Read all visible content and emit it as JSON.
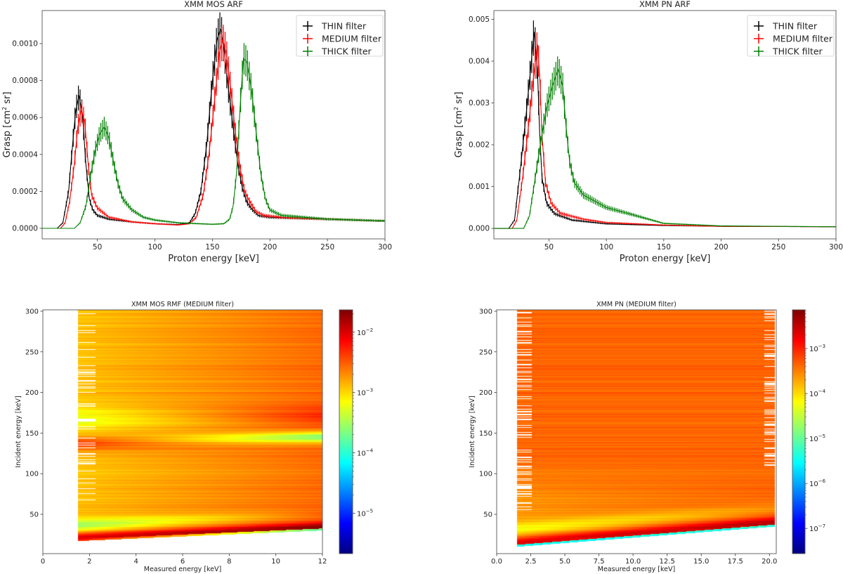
{
  "chart_data": [
    {
      "id": "mosArf",
      "type": "line",
      "title": "XMM MOS ARF",
      "xlabel": "Proton energy [keV]",
      "ylabel": "Grasp [cm² sr]",
      "ylabel_parts": [
        "Grasp [cm",
        "2",
        " sr]"
      ],
      "xlim": [
        2,
        300
      ],
      "ylim": [
        -5.7e-05,
        0.001179
      ],
      "xticks": [
        50,
        100,
        150,
        200,
        250,
        300
      ],
      "xtick_labels": [
        "50",
        "100",
        "150",
        "200",
        "250",
        "300"
      ],
      "yticks": [
        0,
        0.0002,
        0.0004,
        0.0006,
        0.0008,
        0.001
      ],
      "ytick_labels": [
        "0.0000",
        "0.0002",
        "0.0004",
        "0.0006",
        "0.0008",
        "0.0010"
      ],
      "legend_position": "top-right",
      "series": [
        {
          "name": "THIN filter",
          "color": "#000000",
          "points": [
            [
              0,
              0
            ],
            [
              15,
              0
            ],
            [
              20,
              3e-05
            ],
            [
              25,
              0.0002
            ],
            [
              28,
              0.00042
            ],
            [
              31,
              0.00063
            ],
            [
              34,
              0.00072
            ],
            [
              37,
              0.00062
            ],
            [
              40,
              0.00035
            ],
            [
              43,
              0.00016
            ],
            [
              46,
              0.0001
            ],
            [
              50,
              7e-05
            ],
            [
              60,
              5e-05
            ],
            [
              80,
              3.5e-05
            ],
            [
              100,
              2.5e-05
            ],
            [
              120,
              2e-05
            ],
            [
              130,
              3e-05
            ],
            [
              135,
              8e-05
            ],
            [
              140,
              0.0002
            ],
            [
              145,
              0.00045
            ],
            [
              150,
              0.0008
            ],
            [
              154,
              0.00102
            ],
            [
              157,
              0.00108
            ],
            [
              160,
              0.00098
            ],
            [
              164,
              0.00075
            ],
            [
              168,
              0.00055
            ],
            [
              172,
              0.00035
            ],
            [
              176,
              0.00022
            ],
            [
              180,
              0.00014
            ],
            [
              185,
              0.0001
            ],
            [
              190,
              7e-05
            ],
            [
              200,
              6e-05
            ],
            [
              250,
              5e-05
            ],
            [
              300,
              4e-05
            ]
          ]
        },
        {
          "name": "MEDIUM filter",
          "color": "#ff0000",
          "points": [
            [
              0,
              0
            ],
            [
              18,
              0
            ],
            [
              22,
              3e-05
            ],
            [
              26,
              0.00015
            ],
            [
              30,
              0.00035
            ],
            [
              33,
              0.00055
            ],
            [
              36,
              0.00064
            ],
            [
              39,
              0.00058
            ],
            [
              42,
              0.00035
            ],
            [
              45,
              0.00018
            ],
            [
              50,
              0.00011
            ],
            [
              60,
              6e-05
            ],
            [
              80,
              3.5e-05
            ],
            [
              100,
              2.5e-05
            ],
            [
              120,
              1.8e-05
            ],
            [
              130,
              2.5e-05
            ],
            [
              136,
              6e-05
            ],
            [
              142,
              0.00018
            ],
            [
              147,
              0.0004
            ],
            [
              152,
              0.0007
            ],
            [
              156,
              0.00095
            ],
            [
              159,
              0.00102
            ],
            [
              162,
              0.00095
            ],
            [
              166,
              0.00075
            ],
            [
              170,
              0.00052
            ],
            [
              174,
              0.00033
            ],
            [
              178,
              0.0002
            ],
            [
              182,
              0.00015
            ],
            [
              188,
              9e-05
            ],
            [
              195,
              7e-05
            ],
            [
              210,
              6e-05
            ],
            [
              250,
              5e-05
            ],
            [
              300,
              4e-05
            ]
          ]
        },
        {
          "name": "THICK filter",
          "color": "#008000",
          "points": [
            [
              0,
              0
            ],
            [
              30,
              0
            ],
            [
              35,
              3e-05
            ],
            [
              40,
              0.00012
            ],
            [
              44,
              0.00028
            ],
            [
              48,
              0.00042
            ],
            [
              52,
              0.00051
            ],
            [
              56,
              0.00055
            ],
            [
              60,
              0.00049
            ],
            [
              64,
              0.00036
            ],
            [
              68,
              0.00024
            ],
            [
              72,
              0.00016
            ],
            [
              80,
              0.0001
            ],
            [
              90,
              6e-05
            ],
            [
              100,
              4.5e-05
            ],
            [
              120,
              3e-05
            ],
            [
              150,
              2.2e-05
            ],
            [
              160,
              2.5e-05
            ],
            [
              165,
              5e-05
            ],
            [
              168,
              0.00012
            ],
            [
              171,
              0.0003
            ],
            [
              174,
              0.00065
            ],
            [
              177,
              0.00092
            ],
            [
              180,
              0.0009
            ],
            [
              184,
              0.00075
            ],
            [
              188,
              0.00052
            ],
            [
              192,
              0.0003
            ],
            [
              196,
              0.00016
            ],
            [
              200,
              0.0001
            ],
            [
              210,
              7e-05
            ],
            [
              250,
              5e-05
            ],
            [
              300,
              4e-05
            ]
          ]
        }
      ]
    },
    {
      "id": "pnArf",
      "type": "line",
      "title": "XMM PN ARF",
      "xlabel": "Proton energy [keV]",
      "ylabel": "Grasp [cm² sr]",
      "ylabel_parts": [
        "Grasp [cm",
        "2",
        " sr]"
      ],
      "xlim": [
        2,
        300
      ],
      "ylim": [
        -0.00025,
        0.00521
      ],
      "xticks": [
        50,
        100,
        150,
        200,
        250,
        300
      ],
      "xtick_labels": [
        "50",
        "100",
        "150",
        "200",
        "250",
        "300"
      ],
      "yticks": [
        0,
        0.001,
        0.002,
        0.003,
        0.004,
        0.005
      ],
      "ytick_labels": [
        "0.000",
        "0.001",
        "0.002",
        "0.003",
        "0.004",
        "0.005"
      ],
      "legend_position": "top-right",
      "series": [
        {
          "name": "THIN filter",
          "color": "#000000",
          "points": [
            [
              0,
              0
            ],
            [
              15,
              0
            ],
            [
              20,
              0.0002
            ],
            [
              25,
              0.0014
            ],
            [
              30,
              0.0027
            ],
            [
              34,
              0.0038
            ],
            [
              37,
              0.0047
            ],
            [
              40,
              0.0038
            ],
            [
              42,
              0.0022
            ],
            [
              44,
              0.0012
            ],
            [
              48,
              0.0006
            ],
            [
              55,
              0.00035
            ],
            [
              70,
              0.0002
            ],
            [
              100,
              0.00011
            ],
            [
              150,
              7e-05
            ],
            [
              200,
              5e-05
            ],
            [
              300,
              4e-05
            ]
          ]
        },
        {
          "name": "MEDIUM filter",
          "color": "#ff0000",
          "points": [
            [
              0,
              0
            ],
            [
              18,
              0
            ],
            [
              22,
              0.0002
            ],
            [
              27,
              0.0012
            ],
            [
              32,
              0.0024
            ],
            [
              36,
              0.0035
            ],
            [
              40,
              0.0044
            ],
            [
              42,
              0.0036
            ],
            [
              44,
              0.0022
            ],
            [
              47,
              0.0011
            ],
            [
              52,
              0.0006
            ],
            [
              60,
              0.00036
            ],
            [
              80,
              0.00022
            ],
            [
              100,
              0.00014
            ],
            [
              150,
              8e-05
            ],
            [
              200,
              5e-05
            ],
            [
              300,
              4e-05
            ]
          ]
        },
        {
          "name": "THICK filter",
          "color": "#008000",
          "points": [
            [
              0,
              0
            ],
            [
              28,
              0
            ],
            [
              33,
              0.0003
            ],
            [
              38,
              0.0012
            ],
            [
              43,
              0.0021
            ],
            [
              48,
              0.0029
            ],
            [
              53,
              0.0034
            ],
            [
              58,
              0.0038
            ],
            [
              62,
              0.0034
            ],
            [
              65,
              0.0024
            ],
            [
              68,
              0.0016
            ],
            [
              72,
              0.0011
            ],
            [
              80,
              0.0008
            ],
            [
              100,
              0.0005
            ],
            [
              120,
              0.00035
            ],
            [
              150,
              0.00012
            ],
            [
              200,
              6e-05
            ],
            [
              300,
              4e-05
            ]
          ]
        }
      ]
    },
    {
      "id": "mosRmf",
      "type": "heatmap",
      "title": "XMM MOS RMF (MEDIUM filter)",
      "xlabel": "Measured energy [keV]",
      "ylabel": "Incident energy [keV]",
      "xlim": [
        0,
        12
      ],
      "ylim": [
        1.6,
        301.7
      ],
      "xticks": [
        0,
        2,
        4,
        6,
        8,
        10,
        12
      ],
      "xtick_labels": [
        "0",
        "2",
        "4",
        "6",
        "8",
        "10",
        "12"
      ],
      "yticks": [
        50,
        100,
        150,
        200,
        250,
        300
      ],
      "ytick_labels": [
        "50",
        "100",
        "150",
        "200",
        "250",
        "300"
      ],
      "colormap": "jet",
      "color_scale": "log",
      "colorbar_log10_range": [
        -5.67,
        -1.63
      ],
      "colorbar_ticks_log10": [
        -5,
        -4,
        -3,
        -2
      ],
      "colorbar_tick_labels": [
        [
          "10",
          "−5"
        ],
        [
          "10",
          "−4"
        ],
        [
          "10",
          "−3"
        ],
        [
          "10",
          "−2"
        ]
      ],
      "measured_energy_range": [
        1.5,
        12
      ]
    },
    {
      "id": "pnRmf",
      "type": "heatmap",
      "title": "XMM PN (MEDIUM filter)",
      "xlabel": "Measured energy [keV]",
      "ylabel": "Incident energy [keV]",
      "xlim": [
        0,
        20.5
      ],
      "ylim": [
        1.6,
        301.7
      ],
      "xticks": [
        0,
        2.5,
        5,
        7.5,
        10,
        12.5,
        15,
        17.5,
        20
      ],
      "xtick_labels": [
        "0.0",
        "2.5",
        "5.0",
        "7.5",
        "10.0",
        "12.5",
        "15.0",
        "17.5",
        "20.0"
      ],
      "yticks": [
        50,
        100,
        150,
        200,
        250,
        300
      ],
      "ytick_labels": [
        "50",
        "100",
        "150",
        "200",
        "250",
        "300"
      ],
      "colormap": "jet",
      "color_scale": "log",
      "colorbar_log10_range": [
        -7.56,
        -2.14
      ],
      "colorbar_ticks_log10": [
        -7,
        -6,
        -5,
        -4,
        -3
      ],
      "colorbar_tick_labels": [
        [
          "10",
          "−7"
        ],
        [
          "10",
          "−6"
        ],
        [
          "10",
          "−5"
        ],
        [
          "10",
          "−4"
        ],
        [
          "10",
          "−3"
        ]
      ],
      "measured_energy_range": [
        1.5,
        20.4
      ]
    }
  ]
}
